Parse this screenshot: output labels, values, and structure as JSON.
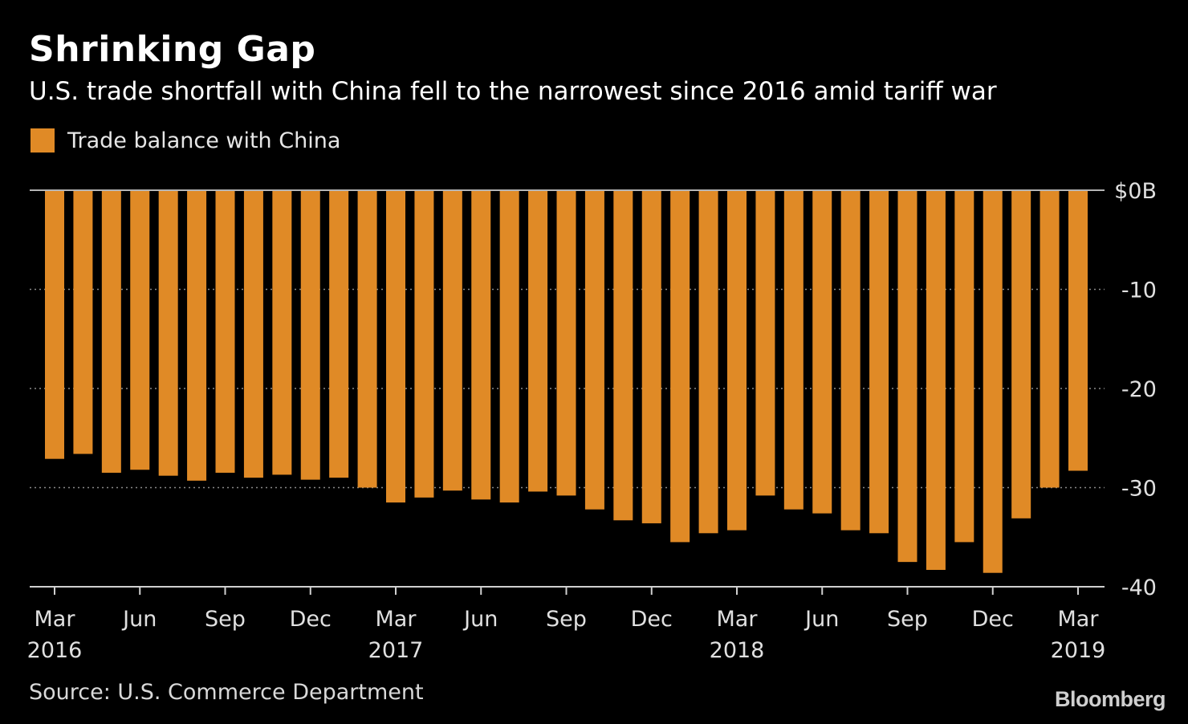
{
  "chart_data": {
    "type": "bar",
    "title": "Shrinking Gap",
    "subtitle": "U.S. trade shortfall with China fell to the narrowest since 2016 amid tariff war",
    "legend": "Trade balance with China",
    "series_color": "#e08a26",
    "categories": [
      "Mar 2016",
      "Apr 2016",
      "May 2016",
      "Jun 2016",
      "Jul 2016",
      "Aug 2016",
      "Sep 2016",
      "Oct 2016",
      "Nov 2016",
      "Dec 2016",
      "Jan 2017",
      "Feb 2017",
      "Mar 2017",
      "Apr 2017",
      "May 2017",
      "Jun 2017",
      "Jul 2017",
      "Aug 2017",
      "Sep 2017",
      "Oct 2017",
      "Nov 2017",
      "Dec 2017",
      "Jan 2018",
      "Feb 2018",
      "Mar 2018",
      "Apr 2018",
      "May 2018",
      "Jun 2018",
      "Jul 2018",
      "Aug 2018",
      "Sep 2018",
      "Oct 2018",
      "Nov 2018",
      "Dec 2018",
      "Jan 2019",
      "Feb 2019",
      "Mar 2019"
    ],
    "values": [
      -27.1,
      -26.6,
      -28.5,
      -28.2,
      -28.8,
      -29.3,
      -28.5,
      -29.0,
      -28.7,
      -29.2,
      -29.0,
      -30.0,
      -31.5,
      -31.0,
      -30.3,
      -31.2,
      -31.5,
      -30.4,
      -30.8,
      -32.2,
      -33.3,
      -33.6,
      -35.5,
      -34.6,
      -34.3,
      -30.8,
      -32.2,
      -32.6,
      -34.3,
      -34.6,
      -37.5,
      -38.3,
      -35.5,
      -38.6,
      -33.1,
      -30.0,
      -28.3
    ],
    "ylim": [
      -40,
      0
    ],
    "yticks": [
      {
        "value": 0,
        "label": "$0B"
      },
      {
        "value": -10,
        "label": "-10"
      },
      {
        "value": -20,
        "label": "-20"
      },
      {
        "value": -30,
        "label": "-30"
      },
      {
        "value": -40,
        "label": "-40"
      }
    ],
    "xticks": [
      {
        "index": 0,
        "label": "Mar",
        "year": "2016"
      },
      {
        "index": 3,
        "label": "Jun",
        "year": ""
      },
      {
        "index": 6,
        "label": "Sep",
        "year": ""
      },
      {
        "index": 9,
        "label": "Dec",
        "year": ""
      },
      {
        "index": 12,
        "label": "Mar",
        "year": "2017"
      },
      {
        "index": 15,
        "label": "Jun",
        "year": ""
      },
      {
        "index": 18,
        "label": "Sep",
        "year": ""
      },
      {
        "index": 21,
        "label": "Dec",
        "year": ""
      },
      {
        "index": 24,
        "label": "Mar",
        "year": "2018"
      },
      {
        "index": 27,
        "label": "Jun",
        "year": ""
      },
      {
        "index": 30,
        "label": "Sep",
        "year": ""
      },
      {
        "index": 33,
        "label": "Dec",
        "year": ""
      },
      {
        "index": 36,
        "label": "Mar",
        "year": "2019"
      }
    ],
    "grid": true,
    "legend_position": "top-left"
  },
  "footer": {
    "source": "Source: U.S. Commerce Department",
    "brand": "Bloomberg"
  }
}
